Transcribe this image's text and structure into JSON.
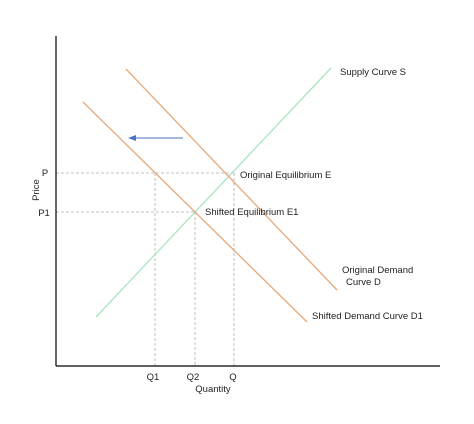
{
  "axes": {
    "x_label": "Quantity",
    "y_label": "Price"
  },
  "price_ticks": {
    "p": "P",
    "p1": "P1"
  },
  "quantity_ticks": {
    "q1": "Q1",
    "q2": "Q2",
    "q": "Q"
  },
  "curves": {
    "supply": {
      "label": "Supply Curve S",
      "color": "#a8e6c0"
    },
    "demand": {
      "label_line1": "Original Demand",
      "label_line2": "Curve D",
      "color": "#e8a878"
    },
    "shifted_demand": {
      "label": "Shifted Demand Curve D1",
      "color": "#e8a878"
    }
  },
  "points": {
    "original": "Original Equilibrium E",
    "shifted": "Shifted Equilibrium E1"
  },
  "shift_arrow": {
    "color": "#4a72c4",
    "direction": "left"
  },
  "axis_color": "#000000",
  "guide_color": "#b0b0b0"
}
